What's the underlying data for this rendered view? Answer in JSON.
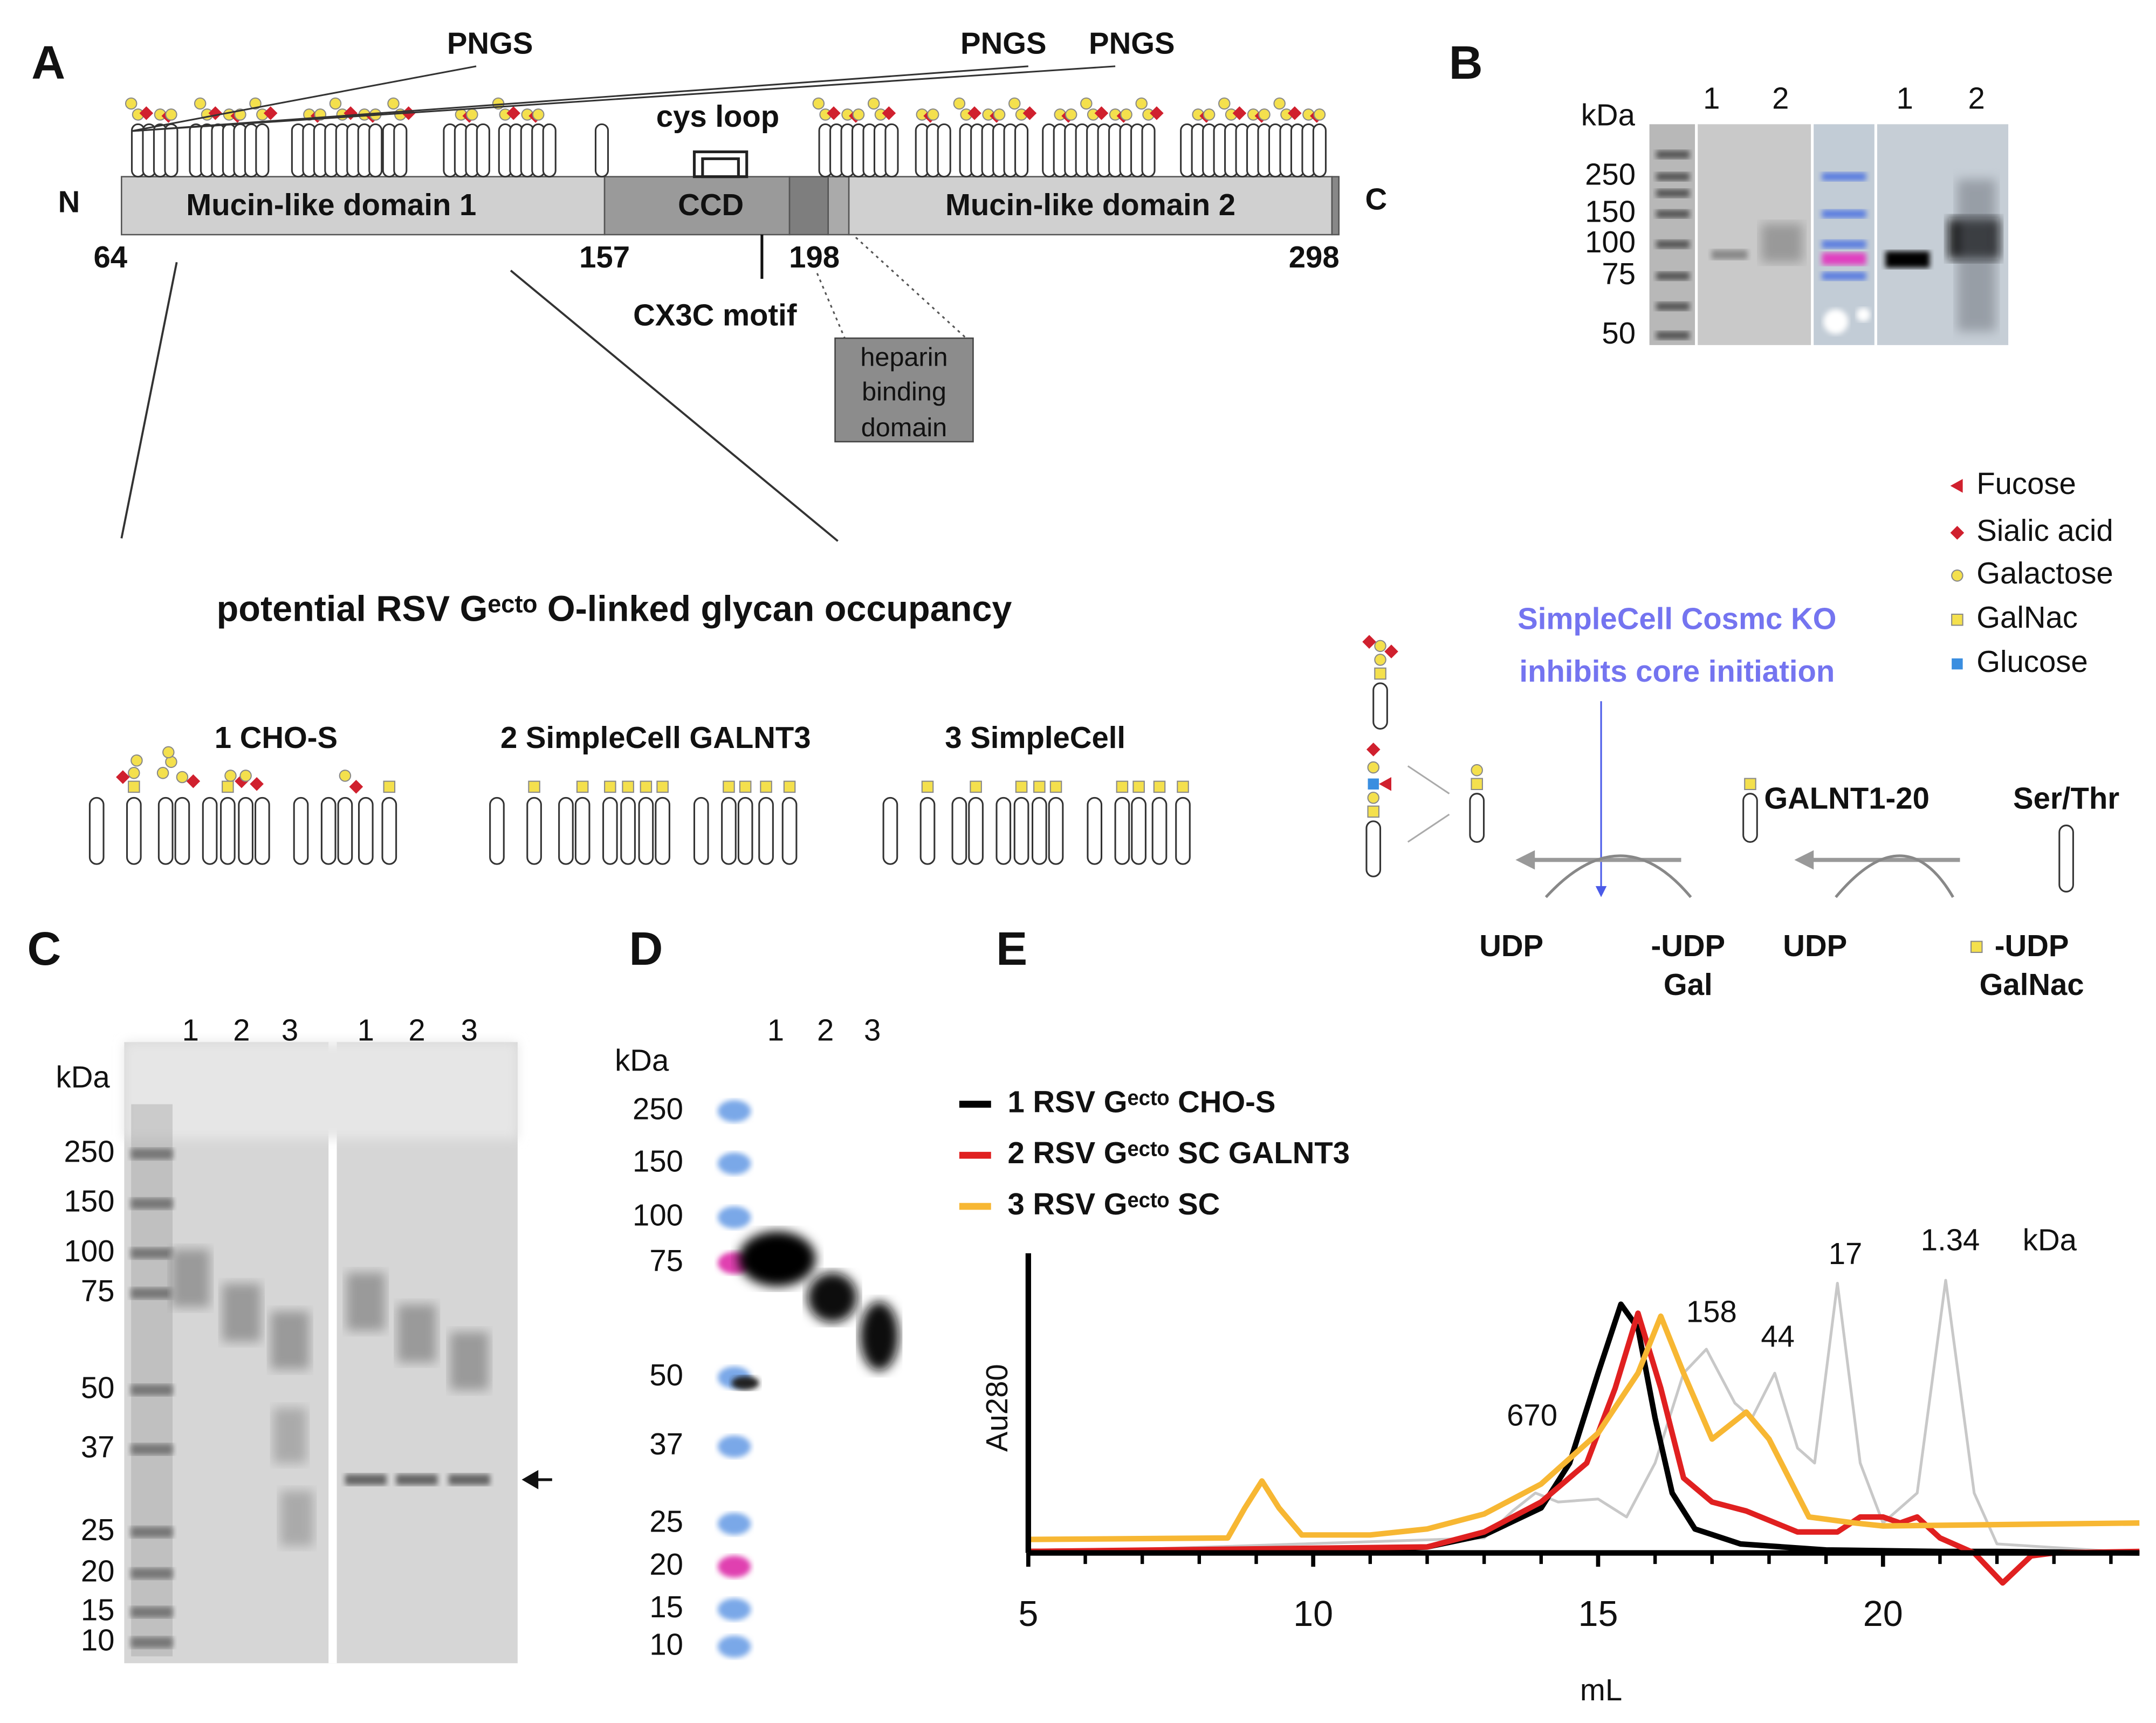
{
  "panel_labels": [
    "A",
    "B",
    "C",
    "D",
    "E"
  ],
  "panel_a": {
    "pngs": [
      "PNGS",
      "PNGS",
      "PNGS"
    ],
    "cys_loop": "cys loop",
    "n_term": "N",
    "c_term": "C",
    "domains": [
      "Mucin-like domain 1",
      "CCD",
      "Mucin-like domain 2"
    ],
    "positions": [
      "64",
      "157",
      "198",
      "298"
    ],
    "cx3c": "CX3C motif",
    "heparin": [
      "heparin",
      "binding",
      "domain"
    ],
    "occupancy_title": "potential RSV Gᵉᶜᵗᵒ O-linked glycan occupancy",
    "cell_lines": [
      "1 CHO-S",
      "2 SimpleCell GALNT3",
      "3 SimpleCell"
    ]
  },
  "legend": [
    "Fucose",
    "Sialic acid",
    "Galactose",
    "GalNac",
    "Glucose"
  ],
  "pathway": {
    "knockout": [
      "SimpleCell Cosmc KO",
      "inhibits core initiation"
    ],
    "enzyme": "GALNT1-20",
    "substrate": "Ser/Thr",
    "donors": [
      "UDP",
      "-UDP",
      "Gal",
      "UDP",
      "-UDP",
      "GalNac"
    ]
  },
  "panel_b": {
    "unit": "kDa",
    "markers": [
      "250",
      "150",
      "100",
      "75",
      "50"
    ],
    "lanes": [
      "1",
      "2",
      "1",
      "2"
    ]
  },
  "panel_c": {
    "unit": "kDa",
    "markers": [
      "250",
      "150",
      "100",
      "75",
      "50",
      "37",
      "25",
      "20",
      "15",
      "10"
    ],
    "lanes": [
      "1",
      "2",
      "3",
      "1",
      "2",
      "3"
    ]
  },
  "panel_d": {
    "unit": "kDa",
    "markers": [
      "250",
      "150",
      "100",
      "75",
      "50",
      "37",
      "25",
      "20",
      "15",
      "10"
    ],
    "lanes": [
      "1",
      "2",
      "3"
    ]
  },
  "chart_data": {
    "type": "line",
    "xlabel": "mL",
    "ylabel": "Au280",
    "xlim": [
      5,
      24.5
    ],
    "ylim": [
      -0.17,
      1
    ],
    "xticks": [
      5,
      10,
      15,
      20
    ],
    "xminorticks": [
      6,
      7,
      8,
      9,
      11,
      12,
      13,
      14,
      16,
      17,
      18,
      19,
      21,
      22,
      23,
      24
    ],
    "annotations": [
      "670",
      "158",
      "44",
      "17",
      "1.34",
      "kDa"
    ],
    "series": [
      {
        "color": "#c8c8c8",
        "x": [
          5,
          13,
          13.5,
          13.9,
          14.3,
          15,
          15.5,
          16,
          16.5,
          16.9,
          17.4,
          17.7,
          18.1,
          18.5,
          18.8,
          19.2,
          19.6,
          20,
          20.6,
          21.1,
          21.6,
          22,
          24.5
        ],
        "values": [
          0,
          0.05,
          0.14,
          0.2,
          0.17,
          0.18,
          0.12,
          0.3,
          0.6,
          0.68,
          0.5,
          0.45,
          0.6,
          0.35,
          0.3,
          0.9,
          0.3,
          0.1,
          0.2,
          0.91,
          0.2,
          0.03,
          0
        ]
      },
      {
        "name": "1 RSV Gᵉᶜᵗᵒ CHO-S",
        "color": "#000000",
        "x": [
          5,
          9,
          10,
          12,
          13,
          14,
          14.5,
          15,
          15.4,
          15.7,
          16,
          16.3,
          16.7,
          17.5,
          19,
          21,
          22,
          24.5
        ],
        "values": [
          0.005,
          0.01,
          0.005,
          0.02,
          0.06,
          0.15,
          0.3,
          0.6,
          0.83,
          0.75,
          0.45,
          0.2,
          0.08,
          0.03,
          0.01,
          0.005,
          0.005,
          0
        ]
      },
      {
        "name": "2 RSV Gᵉᶜᵗᵒ SC GALNT3",
        "color": "#e02020",
        "x": [
          5,
          12,
          13,
          14,
          14.8,
          15.3,
          15.7,
          16.1,
          16.5,
          17,
          17.6,
          18.5,
          19.2,
          19.6,
          20,
          20.3,
          20.6,
          21,
          21.6,
          22.1,
          22.6,
          23,
          24.5
        ],
        "values": [
          0.005,
          0.02,
          0.07,
          0.17,
          0.3,
          0.55,
          0.8,
          0.55,
          0.25,
          0.17,
          0.14,
          0.07,
          0.07,
          0.12,
          0.12,
          0.1,
          0.12,
          0.05,
          0,
          -0.1,
          -0.01,
          0,
          0.005
        ]
      },
      {
        "name": "3 RSV Gᵉᶜᵗᵒ SC",
        "color": "#f7b733",
        "x": [
          5,
          8.5,
          8.8,
          9.1,
          9.4,
          9.8,
          11,
          12,
          13,
          14,
          15,
          15.7,
          16.1,
          16.5,
          17,
          17.6,
          18,
          18.7,
          19.5,
          20,
          24.5
        ],
        "values": [
          0.045,
          0.05,
          0.15,
          0.24,
          0.15,
          0.06,
          0.06,
          0.08,
          0.13,
          0.23,
          0.4,
          0.6,
          0.79,
          0.6,
          0.38,
          0.47,
          0.38,
          0.12,
          0.1,
          0.09,
          0.1
        ]
      }
    ]
  }
}
